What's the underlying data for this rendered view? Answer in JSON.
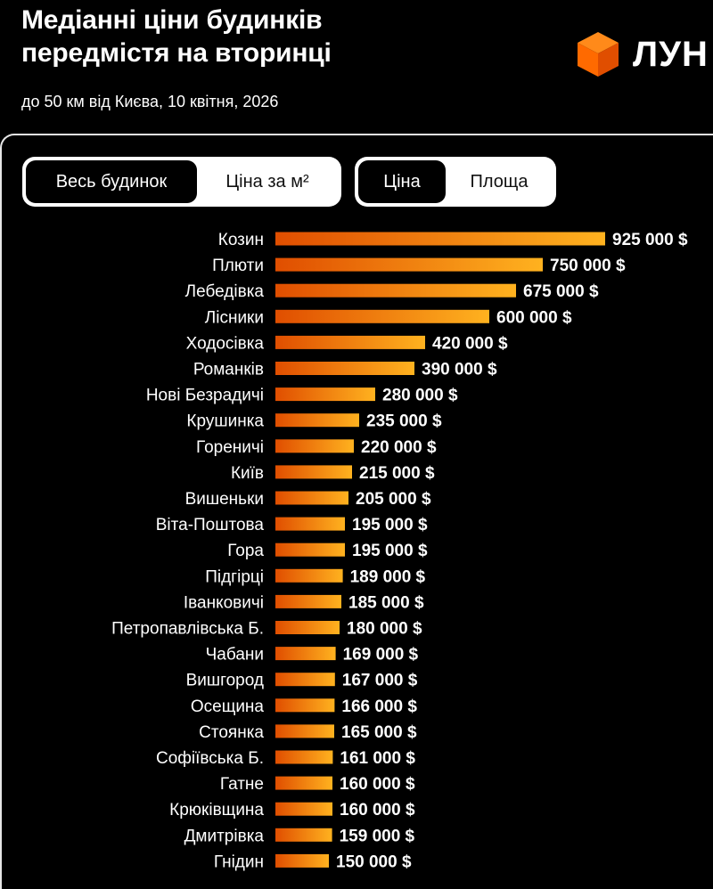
{
  "header": {
    "title_line1": "Медіанні ціни будинків",
    "title_line2": "передмістя на вторинці",
    "subtitle": "до 50 км від Києва, 10 квітня, 2026",
    "logo_text": "ЛУН"
  },
  "toggles": {
    "scope": {
      "options": [
        "Весь будинок",
        "Ціна за м²"
      ],
      "selected": "Весь будинок"
    },
    "metric": {
      "options": [
        "Ціна",
        "Площа"
      ],
      "selected": "Ціна"
    }
  },
  "colors": {
    "bar_start": "#e04e00",
    "bar_end": "#ffb21f",
    "logo_orange": "#ff6a00"
  },
  "chart_data": {
    "type": "bar",
    "orientation": "horizontal",
    "value_suffix": " $",
    "categories": [
      "Козин",
      "Плюти",
      "Лебедівка",
      "Лісники",
      "Ходосівка",
      "Романків",
      "Нові Безрадичі",
      "Крушинка",
      "Гореничі",
      "Київ",
      "Вишеньки",
      "Віта-Поштова",
      "Гора",
      "Підгірці",
      "Іванковичі",
      "Петропавлівська Б.",
      "Чабани",
      "Вишгород",
      "Осещина",
      "Стоянка",
      "Софіївська Б.",
      "Гатне",
      "Крюківщина",
      "Дмитрівка",
      "Гнідин"
    ],
    "values": [
      925000,
      750000,
      675000,
      600000,
      420000,
      390000,
      280000,
      235000,
      220000,
      215000,
      205000,
      195000,
      195000,
      189000,
      185000,
      180000,
      169000,
      167000,
      166000,
      165000,
      161000,
      160000,
      160000,
      159000,
      150000
    ],
    "labels": [
      "925 000 $",
      "750 000 $",
      "675 000 $",
      "600 000 $",
      "420 000 $",
      "390 000 $",
      "280 000 $",
      "235 000 $",
      "220 000 $",
      "215 000 $",
      "205 000 $",
      "195 000 $",
      "195 000 $",
      "189 000 $",
      "185 000 $",
      "180 000 $",
      "169 000 $",
      "167 000 $",
      "166 000 $",
      "165 000 $",
      "161 000 $",
      "160 000 $",
      "160 000 $",
      "159 000 $",
      "150 000 $"
    ],
    "title": "",
    "xlabel": "",
    "ylabel": "",
    "grid": false,
    "legend": "none"
  }
}
